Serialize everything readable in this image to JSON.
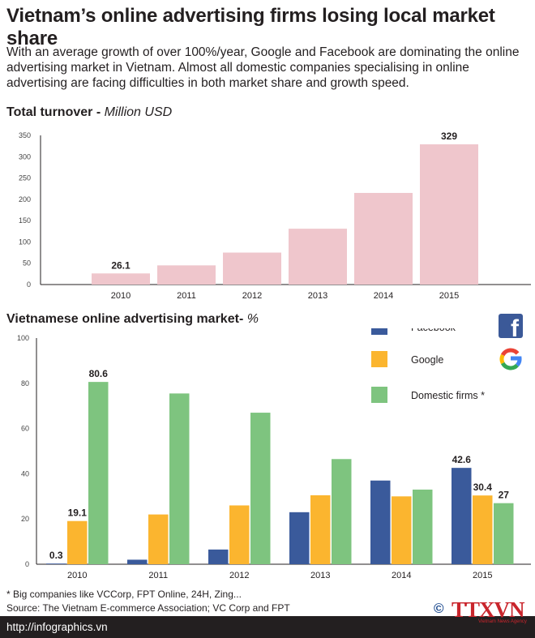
{
  "title": "Vietnam’s online advertising firms losing local market share",
  "subtitle": "With an average growth of over 100%/year, Google and Facebook are dominating the online advertising market in Vietnam. Almost all domestic companies specialising in online advertising are facing difficulties in both market share and growth speed.",
  "colors": {
    "turnover_bar": "#efc6cc",
    "facebook": "#3a5a9b",
    "google": "#fbb52f",
    "domestic": "#7ec47f",
    "axis": "#231f20",
    "footer_bg": "#231f20"
  },
  "chart_data": [
    {
      "type": "bar",
      "title": "Total turnover",
      "unit": "Million USD",
      "categories": [
        "2010",
        "2011",
        "2012",
        "2013",
        "2014",
        "2015"
      ],
      "values": [
        26.1,
        45,
        75,
        131,
        215,
        329
      ],
      "data_labels": [
        "26.1",
        "",
        "",
        "",
        "",
        "329"
      ],
      "yticks": [
        "0",
        "50",
        "100",
        "150",
        "200",
        "250",
        "300",
        "350"
      ],
      "ylim": [
        0,
        350
      ],
      "grid": false
    },
    {
      "type": "bar",
      "title": "Vietnamese online advertising market",
      "unit": "%",
      "categories": [
        "2010",
        "2011",
        "2012",
        "2013",
        "2014",
        "2015"
      ],
      "series": [
        {
          "name": "Facebook",
          "values": [
            0.3,
            2,
            6.5,
            23,
            37,
            42.6
          ],
          "labels": [
            "0.3",
            "",
            "",
            "",
            "",
            "42.6"
          ]
        },
        {
          "name": "Google",
          "values": [
            19.1,
            22,
            26,
            30.5,
            30,
            30.4
          ],
          "labels": [
            "19.1",
            "",
            "",
            "",
            "",
            "30.4"
          ]
        },
        {
          "name": "Domestic firms",
          "values": [
            80.6,
            75.5,
            67,
            46.5,
            33,
            27
          ],
          "labels": [
            "80.6",
            "",
            "",
            "",
            "",
            "27"
          ]
        }
      ],
      "legend_suffix": "*",
      "legend_position": "top-right",
      "yticks": [
        "0",
        "20",
        "40",
        "60",
        "80",
        "100"
      ],
      "ylim": [
        0,
        100
      ],
      "grid": false
    }
  ],
  "footnotes": [
    "* Big companies like VCCorp, FPT Online, 24H, Zing...",
    "Source: The Vietnam E-commerce Association; VC Corp and FPT"
  ],
  "footer": {
    "url": "http://infographics.vn"
  },
  "agency": {
    "copyright": "©",
    "name": "TTXVN",
    "subtitle": "Vietnam News Agency"
  },
  "icons": {
    "facebook": "facebook-logo-icon",
    "google": "google-logo-icon"
  }
}
